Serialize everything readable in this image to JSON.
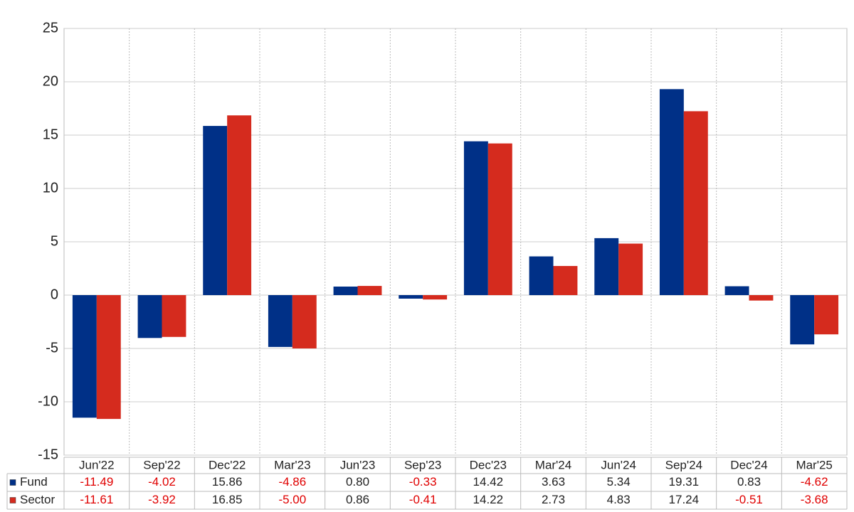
{
  "chart_data": {
    "type": "bar",
    "categories": [
      "Jun'22",
      "Sep'22",
      "Dec'22",
      "Mar'23",
      "Jun'23",
      "Sep'23",
      "Dec'23",
      "Mar'24",
      "Jun'24",
      "Sep'24",
      "Dec'24",
      "Mar'25"
    ],
    "series": [
      {
        "name": "Fund",
        "color": "#003087",
        "values": [
          -11.49,
          -4.02,
          15.86,
          -4.86,
          0.8,
          -0.33,
          14.42,
          3.63,
          5.34,
          19.31,
          0.83,
          -4.62
        ],
        "value_labels": [
          "-11.49",
          "-4.02",
          "15.86",
          "-4.86",
          "0.80",
          "-0.33",
          "14.42",
          "3.63",
          "5.34",
          "19.31",
          "0.83",
          "-4.62"
        ]
      },
      {
        "name": "Sector",
        "color": "#d52b1e",
        "values": [
          -11.61,
          -3.92,
          16.85,
          -5.0,
          0.86,
          -0.41,
          14.22,
          2.73,
          4.83,
          17.24,
          -0.51,
          -3.68
        ],
        "value_labels": [
          "-11.61",
          "-3.92",
          "16.85",
          "-5.00",
          "0.86",
          "-0.41",
          "14.22",
          "2.73",
          "4.83",
          "17.24",
          "-0.51",
          "-3.68"
        ]
      }
    ],
    "ylim": [
      -15,
      25
    ],
    "yticks": [
      -15,
      -10,
      -5,
      0,
      5,
      10,
      15,
      20,
      25
    ],
    "grid": true
  }
}
